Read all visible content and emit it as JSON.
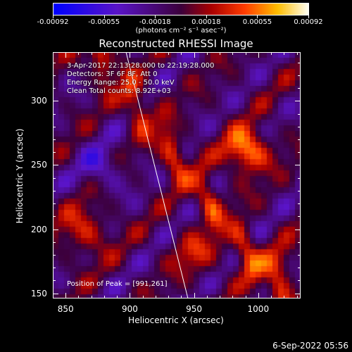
{
  "colorbar": {
    "ticks": [
      "-0.00092",
      "-0.00055",
      "-0.00018",
      "0.00018",
      "0.00055",
      "0.00092"
    ],
    "units": "(photons cm⁻² s⁻¹ asec⁻²)"
  },
  "chart_data": {
    "type": "heatmap",
    "title": "Reconstructed RHESSI Image",
    "xlabel": "Heliocentric X (arcsec)",
    "ylabel": "Heliocentric Y (arcsec)",
    "xlim": [
      840,
      1033
    ],
    "ylim": [
      146,
      338
    ],
    "x_ticks": [
      "850",
      "900",
      "950",
      "1000"
    ],
    "y_ticks": [
      "150",
      "200",
      "250",
      "300"
    ],
    "x_tick_values": [
      850,
      900,
      950,
      1000
    ],
    "y_tick_values": [
      150,
      200,
      250,
      300
    ],
    "color_range": [
      -0.00092,
      0.00092
    ],
    "peak_xy": [
      991,
      261
    ],
    "annotations": [
      "3-Apr-2017 22:13:28.000 to 22:19:28.000",
      "Detectors: 3F 6F 8F, Att 0",
      "Energy Range: 25.0 - 50.0 keV",
      "Clean    Total counts: 8.92E+03",
      "Position of Peak = [991,261]"
    ]
  },
  "footer": {
    "date": "6-Sep-2022 05:56"
  }
}
